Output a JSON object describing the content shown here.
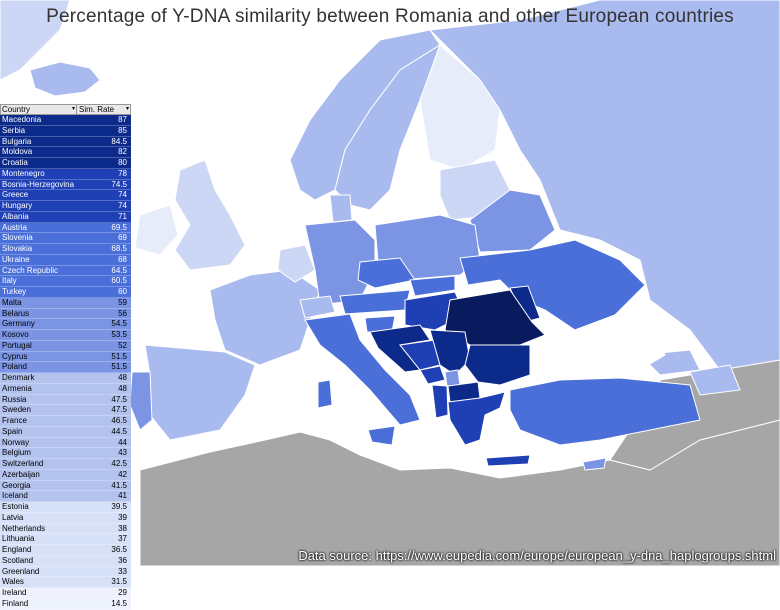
{
  "title": "Percentage of Y-DNA similarity between Romania and other European countries",
  "source": "Data source: https://www.eupedia.com/europe/european_y-dna_haplogroups.shtml",
  "table": {
    "headers": [
      "Country",
      "Sim. Rate"
    ],
    "rows": [
      {
        "country": "Macedonia",
        "value": "87"
      },
      {
        "country": "Serbia",
        "value": "85"
      },
      {
        "country": "Bulgaria",
        "value": "84.5"
      },
      {
        "country": "Moldova",
        "value": "82"
      },
      {
        "country": "Croatia",
        "value": "80"
      },
      {
        "country": "Montenegro",
        "value": "78"
      },
      {
        "country": "Bosnia-Herzegovina",
        "value": "74.5"
      },
      {
        "country": "Greece",
        "value": "74"
      },
      {
        "country": "Hungary",
        "value": "74"
      },
      {
        "country": "Albania",
        "value": "71"
      },
      {
        "country": "Austria",
        "value": "69.5"
      },
      {
        "country": "Slovenia",
        "value": "69"
      },
      {
        "country": "Slovakia",
        "value": "68.5"
      },
      {
        "country": "Ukraine",
        "value": "68"
      },
      {
        "country": "Czech Republic",
        "value": "64.5"
      },
      {
        "country": "Italy",
        "value": "60.5"
      },
      {
        "country": "Turkey",
        "value": "60"
      },
      {
        "country": "Malta",
        "value": "59"
      },
      {
        "country": "Belarus",
        "value": "56"
      },
      {
        "country": "Germany",
        "value": "54.5"
      },
      {
        "country": "Kosovo",
        "value": "53.5"
      },
      {
        "country": "Portugal",
        "value": "52"
      },
      {
        "country": "Cyprus",
        "value": "51.5"
      },
      {
        "country": "Poland",
        "value": "51.5"
      },
      {
        "country": "Denmark",
        "value": "48"
      },
      {
        "country": "Armenia",
        "value": "48"
      },
      {
        "country": "Russia",
        "value": "47.5"
      },
      {
        "country": "Sweden",
        "value": "47.5"
      },
      {
        "country": "France",
        "value": "46.5"
      },
      {
        "country": "Spain",
        "value": "44.5"
      },
      {
        "country": "Norway",
        "value": "44"
      },
      {
        "country": "Belgium",
        "value": "43"
      },
      {
        "country": "Switzerland",
        "value": "42.5"
      },
      {
        "country": "Azerbaijan",
        "value": "42"
      },
      {
        "country": "Georgia",
        "value": "41.5"
      },
      {
        "country": "Iceland",
        "value": "41"
      },
      {
        "country": "Estonia",
        "value": "39.5"
      },
      {
        "country": "Latvia",
        "value": "39"
      },
      {
        "country": "Netherlands",
        "value": "38"
      },
      {
        "country": "Lithuania",
        "value": "37"
      },
      {
        "country": "England",
        "value": "36.5"
      },
      {
        "country": "Scotland",
        "value": "36"
      },
      {
        "country": "Greenland",
        "value": "33"
      },
      {
        "country": "Wales",
        "value": "31.5"
      },
      {
        "country": "Ireland",
        "value": "29"
      },
      {
        "country": "Finland",
        "value": "14.5"
      }
    ]
  },
  "colors": {
    "sea": "#ffffff",
    "non_european_land": "#a6a6a6",
    "romania": "#0a1a5e",
    "tier_80_90": "#0c2a8a",
    "tier_70_80": "#1f3fb5",
    "tier_60_70": "#4a6fd8",
    "tier_50_60": "#7b95e4",
    "tier_40_50": "#a9baee",
    "tier_30_40": "#ccd6f5",
    "tier_0_30": "#e6ecfa",
    "row_tier_1": "#0c2a8a",
    "row_tier_2": "#1f3fb5",
    "row_tier_3": "#4a6fd8",
    "row_tier_4": "#7b95e4",
    "row_tier_5": "#b4c3ee",
    "row_tier_6": "#d6e0f7",
    "row_tier_7": "#eef2fc"
  }
}
